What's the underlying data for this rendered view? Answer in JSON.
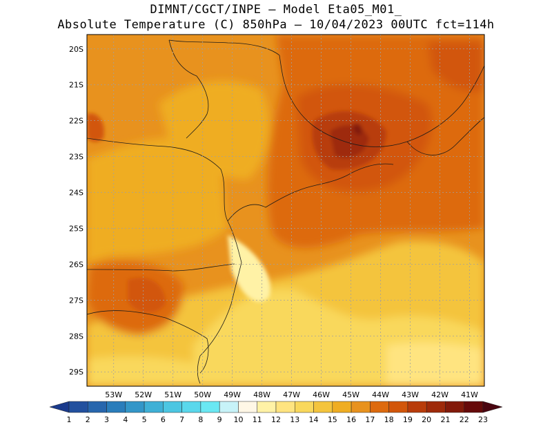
{
  "header": {
    "line1": "DIMNT/CGCT/INPE –  Model Eta05_M01_",
    "line2": "Absolute Temperature (C) 850hPa –  10/04/2023 00UTC fct=114h"
  },
  "map": {
    "lat_range": [
      -29.4,
      -19.6
    ],
    "lon_range": [
      -53.9,
      -40.5
    ],
    "lat_ticks": [
      "20S",
      "21S",
      "22S",
      "23S",
      "24S",
      "25S",
      "26S",
      "27S",
      "28S",
      "29S"
    ],
    "lon_ticks": [
      "53W",
      "52W",
      "51W",
      "50W",
      "49W",
      "48W",
      "47W",
      "46W",
      "45W",
      "44W",
      "43W",
      "42W",
      "41W"
    ],
    "gridlines": "dotted"
  },
  "colorbar": {
    "labels": [
      "1",
      "2",
      "3",
      "4",
      "5",
      "6",
      "7",
      "8",
      "9",
      "10",
      "11",
      "12",
      "13",
      "14",
      "15",
      "16",
      "17",
      "18",
      "19",
      "20",
      "21",
      "22",
      "23"
    ],
    "colors": [
      "#1a3a8c",
      "#22509e",
      "#2766ad",
      "#2a7dbb",
      "#3396c8",
      "#3fb0d6",
      "#4cc6e2",
      "#5ad8ec",
      "#6ae8f3",
      "#c7f3f8",
      "#fff7e6",
      "#fff2a6",
      "#ffe480",
      "#f9d85c",
      "#f4c43d",
      "#efad22",
      "#e8921e",
      "#dd6a0e",
      "#d2560a",
      "#b83c0a",
      "#9e2a0a",
      "#821a0a",
      "#660a0a",
      "#4a0510"
    ]
  }
}
